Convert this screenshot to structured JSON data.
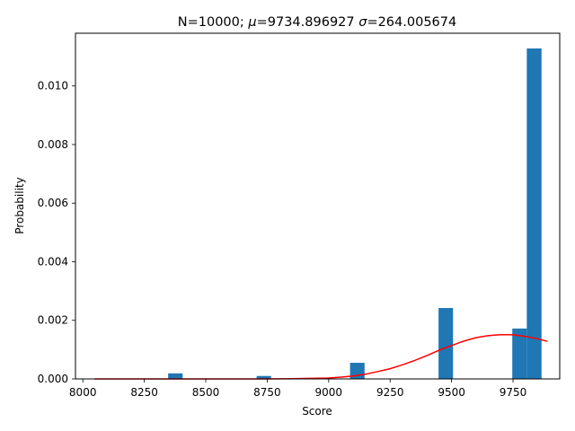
{
  "chart_data": {
    "type": "bar",
    "title_parts": {
      "prefix": "N=10000; ",
      "mu_symbol": "μ",
      "mu_text": "=9734.896927 ",
      "sigma_symbol": "σ",
      "sigma_text": "=264.005674"
    },
    "xlabel": "Score",
    "ylabel": "Probability",
    "xlim": [
      7970,
      9940
    ],
    "ylim": [
      0,
      0.0118
    ],
    "xticks": [
      8000,
      8250,
      8500,
      8750,
      9000,
      9250,
      9500,
      9750
    ],
    "yticks": [
      0.0,
      0.002,
      0.004,
      0.006,
      0.008,
      0.01
    ],
    "ytick_labels": [
      "0.000",
      "0.002",
      "0.004",
      "0.006",
      "0.008",
      "0.010"
    ],
    "bar_color": "#1f77b4",
    "curve_color": "#ff0000",
    "bars": [
      {
        "x0": 8347,
        "x1": 8406,
        "value": 0.00019
      },
      {
        "x0": 8707,
        "x1": 8766,
        "value": 0.0001
      },
      {
        "x0": 9087,
        "x1": 9146,
        "value": 0.00055
      },
      {
        "x0": 9447,
        "x1": 9506,
        "value": 0.00242
      },
      {
        "x0": 9747,
        "x1": 9806,
        "value": 0.00172
      },
      {
        "x0": 9806,
        "x1": 9866,
        "value": 0.01128
      }
    ],
    "fit_curve": {
      "x": [
        8047,
        8150,
        8250,
        8350,
        8450,
        8550,
        8650,
        8750,
        8850,
        8950,
        9000,
        9050,
        9100,
        9150,
        9200,
        9250,
        9300,
        9350,
        9400,
        9450,
        9500,
        9550,
        9600,
        9650,
        9700,
        9735,
        9760,
        9800,
        9850,
        9890
      ],
      "y": [
        0.0,
        0.0,
        0.0,
        0.0,
        0.0,
        0.0,
        0.0,
        0.0,
        1e-05,
        2e-05,
        3e-05,
        6e-05,
        0.0001,
        0.00016,
        0.00025,
        0.00035,
        0.00048,
        0.00063,
        0.0008,
        0.00098,
        0.00114,
        0.00129,
        0.00141,
        0.00148,
        0.00151,
        0.00151,
        0.0015,
        0.00145,
        0.00137,
        0.00128
      ]
    }
  }
}
